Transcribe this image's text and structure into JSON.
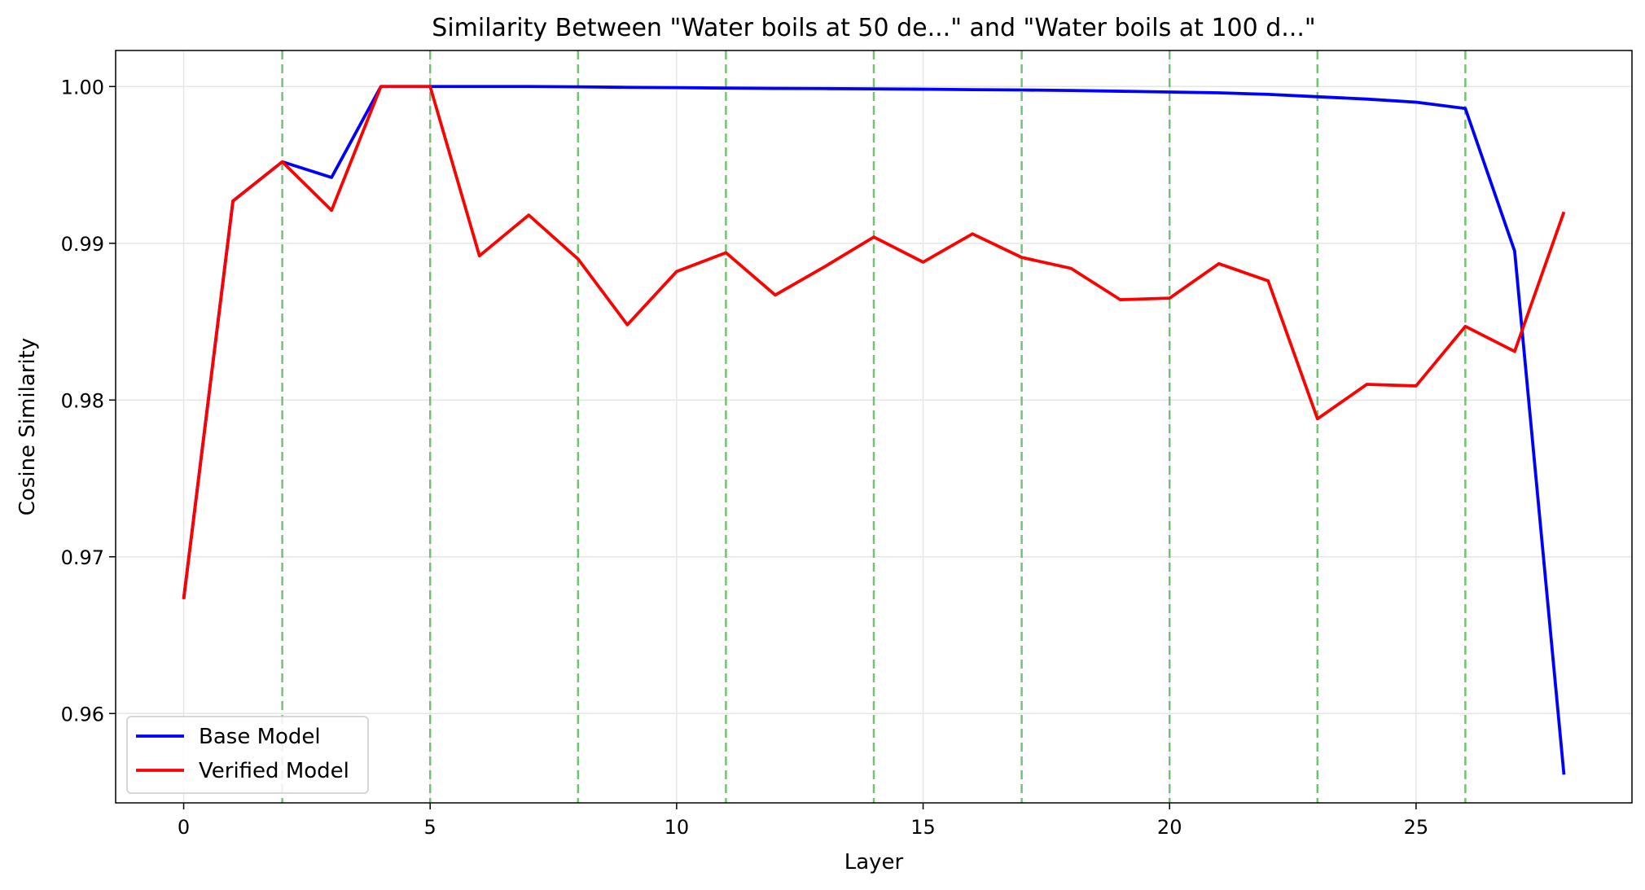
{
  "chart_data": {
    "type": "line",
    "title": "Similarity Between \"Water boils at 50 de...\" and \"Water boils at 100 d...\"",
    "xlabel": "Layer",
    "ylabel": "Cosine Similarity",
    "xlim": [
      -1.38,
      29.38
    ],
    "ylim": [
      0.9543,
      1.0023
    ],
    "xticks": [
      0,
      5,
      10,
      15,
      20,
      25
    ],
    "yticks": [
      0.96,
      0.97,
      0.98,
      0.99,
      1.0
    ],
    "ytick_labels": [
      "0.96",
      "0.97",
      "0.98",
      "0.99",
      "1.00"
    ],
    "grid": true,
    "legend_position": "lower-left",
    "vertical_markers": [
      2,
      5,
      8,
      11,
      14,
      17,
      20,
      23,
      26
    ],
    "marker_color": "#5cb85c",
    "x": [
      0,
      1,
      2,
      3,
      4,
      5,
      6,
      7,
      8,
      9,
      10,
      11,
      12,
      13,
      14,
      15,
      16,
      17,
      18,
      19,
      20,
      21,
      22,
      23,
      24,
      25,
      26,
      27,
      28
    ],
    "series": [
      {
        "name": "Base Model",
        "color": "#0000ff",
        "values": [
          0.9673,
          0.9927,
          0.9952,
          0.9942,
          1.0,
          1.0,
          1.0,
          1.0,
          0.99998,
          0.99995,
          0.99993,
          0.9999,
          0.99988,
          0.99987,
          0.99985,
          0.99983,
          0.9998,
          0.99978,
          0.99975,
          0.9997,
          0.99965,
          0.9996,
          0.9995,
          0.99935,
          0.9992,
          0.999,
          0.9986,
          0.9895,
          0.9561
        ]
      },
      {
        "name": "Verified Model",
        "color": "#ff0000",
        "values": [
          0.9673,
          0.9927,
          0.9952,
          0.9921,
          1.0,
          1.0,
          0.9892,
          0.9918,
          0.989,
          0.9848,
          0.9882,
          0.9894,
          0.9867,
          0.9885,
          0.9904,
          0.9888,
          0.9906,
          0.9891,
          0.9884,
          0.9864,
          0.9865,
          0.9887,
          0.9876,
          0.9788,
          0.981,
          0.9809,
          0.9847,
          0.9831,
          0.992
        ]
      }
    ]
  }
}
